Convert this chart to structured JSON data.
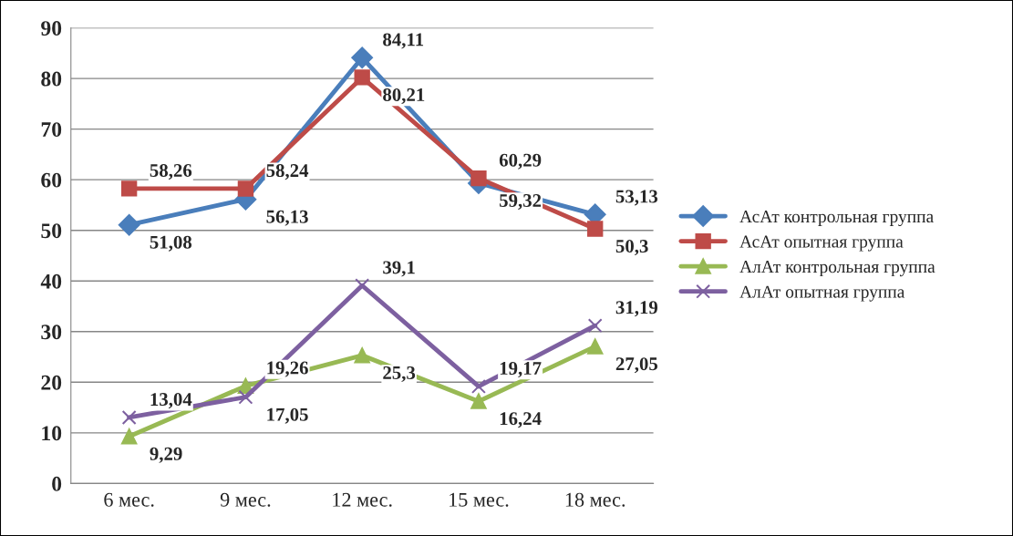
{
  "chart_data": {
    "type": "line",
    "categories": [
      "6 мес.",
      "9 мес.",
      "12 мес.",
      "15 мес.",
      "18 мес."
    ],
    "series": [
      {
        "name": "АсАт контрольная группа",
        "color": "#4a7ebb",
        "marker": "diamond",
        "values": [
          51.08,
          56.13,
          84.11,
          59.32,
          53.13
        ],
        "value_labels": [
          "51,08",
          "56,13",
          "84,11",
          "59,32",
          "53,13"
        ]
      },
      {
        "name": "АсАт опытная группа",
        "color": "#be4b48",
        "marker": "square",
        "values": [
          58.26,
          58.24,
          80.21,
          60.29,
          50.3
        ],
        "value_labels": [
          "58,26",
          "58,24",
          "80,21",
          "60,29",
          "50,3"
        ]
      },
      {
        "name": "АлАт контрольная группа",
        "color": "#98b954",
        "marker": "triangle",
        "values": [
          9.29,
          19.26,
          25.3,
          16.24,
          27.05
        ],
        "value_labels": [
          "9,29",
          "19,26",
          "25,3",
          "16,24",
          "27,05"
        ]
      },
      {
        "name": "АлАт опытная группа",
        "color": "#7d60a0",
        "marker": "cross",
        "values": [
          13.04,
          17.05,
          39.1,
          19.17,
          31.19
        ],
        "value_labels": [
          "13,04",
          "17,05",
          "39,1",
          "19,17",
          "31,19"
        ]
      }
    ],
    "ylim": [
      0,
      90
    ],
    "yticks": [
      0,
      10,
      20,
      30,
      40,
      50,
      60,
      70,
      80,
      90
    ],
    "grid": "y",
    "legend": "right"
  }
}
